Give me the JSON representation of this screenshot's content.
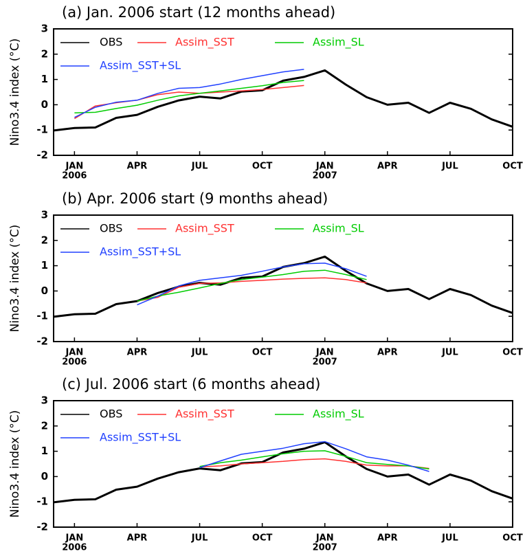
{
  "chart_data": [
    {
      "type": "line",
      "title": "(a) Jan. 2006 start (12 months ahead)",
      "ylabel": "Nino3.4 index (°C)",
      "categories": [
        null,
        "JAN",
        null,
        null,
        "APR",
        null,
        null,
        "JUL",
        null,
        null,
        "OCT",
        null,
        null,
        "JAN",
        null,
        null,
        "APR",
        null,
        null,
        "JUL",
        null,
        null,
        "OCT"
      ],
      "year_labels": [
        null,
        "2006",
        null,
        null,
        null,
        null,
        null,
        null,
        null,
        null,
        null,
        null,
        null,
        "2007",
        null,
        null,
        null,
        null,
        null,
        null,
        null,
        null,
        null
      ],
      "ylim": [
        -2,
        3
      ],
      "yticks": [
        -2,
        -1,
        0,
        1,
        2,
        3
      ],
      "series": [
        {
          "name": "OBS",
          "color": "#000000",
          "values": [
            -1.02,
            -0.92,
            -0.9,
            -0.52,
            -0.4,
            -0.08,
            0.17,
            0.32,
            0.25,
            0.52,
            0.57,
            0.95,
            1.1,
            1.36,
            0.8,
            0.3,
            0.0,
            0.08,
            -0.32,
            0.08,
            -0.16,
            -0.58,
            -0.87
          ]
        },
        {
          "name": "Assim_SST",
          "color": "#ff3030",
          "values": [
            null,
            -0.55,
            -0.05,
            0.08,
            0.18,
            0.4,
            0.5,
            0.45,
            0.5,
            0.55,
            0.6,
            0.68,
            0.76,
            null,
            null,
            null,
            null,
            null,
            null,
            null,
            null,
            null,
            null
          ]
        },
        {
          "name": "Assim_SL",
          "color": "#00cc00",
          "values": [
            null,
            -0.32,
            -0.3,
            -0.15,
            -0.02,
            0.18,
            0.35,
            0.45,
            0.55,
            0.65,
            0.75,
            0.88,
            0.96,
            null,
            null,
            null,
            null,
            null,
            null,
            null,
            null,
            null,
            null
          ]
        },
        {
          "name": "Assim_SST+SL",
          "color": "#2040ff",
          "values": [
            null,
            -0.5,
            -0.1,
            0.1,
            0.18,
            0.45,
            0.65,
            0.68,
            0.82,
            1.0,
            1.15,
            1.3,
            1.4,
            null,
            null,
            null,
            null,
            null,
            null,
            null,
            null,
            null,
            null
          ]
        }
      ]
    },
    {
      "type": "line",
      "title": "(b) Apr. 2006 start (9 months ahead)",
      "ylabel": "Nino3.4 index (°C)",
      "categories": [
        null,
        "JAN",
        null,
        null,
        "APR",
        null,
        null,
        "JUL",
        null,
        null,
        "OCT",
        null,
        null,
        "JAN",
        null,
        null,
        "APR",
        null,
        null,
        "JUL",
        null,
        null,
        "OCT"
      ],
      "year_labels": [
        null,
        "2006",
        null,
        null,
        null,
        null,
        null,
        null,
        null,
        null,
        null,
        null,
        null,
        "2007",
        null,
        null,
        null,
        null,
        null,
        null,
        null,
        null,
        null
      ],
      "ylim": [
        -2,
        3
      ],
      "yticks": [
        -2,
        -1,
        0,
        1,
        2,
        3
      ],
      "series": [
        {
          "name": "OBS",
          "color": "#000000",
          "values": [
            -1.02,
            -0.92,
            -0.9,
            -0.52,
            -0.4,
            -0.08,
            0.17,
            0.32,
            0.25,
            0.52,
            0.57,
            0.95,
            1.1,
            1.36,
            0.8,
            0.3,
            0.0,
            0.08,
            -0.32,
            0.08,
            -0.16,
            -0.58,
            -0.87
          ]
        },
        {
          "name": "Assim_SST",
          "color": "#ff3030",
          "values": [
            null,
            null,
            null,
            null,
            -0.4,
            -0.25,
            0.15,
            0.3,
            0.32,
            0.38,
            0.42,
            0.47,
            0.5,
            0.52,
            0.45,
            0.32,
            null,
            null,
            null,
            null,
            null,
            null,
            null
          ]
        },
        {
          "name": "Assim_SL",
          "color": "#00cc00",
          "values": [
            null,
            null,
            null,
            null,
            -0.4,
            -0.2,
            -0.05,
            0.12,
            0.3,
            0.45,
            0.55,
            0.65,
            0.78,
            0.82,
            0.65,
            0.45,
            null,
            null,
            null,
            null,
            null,
            null,
            null
          ]
        },
        {
          "name": "Assim_SST+SL",
          "color": "#2040ff",
          "values": [
            null,
            null,
            null,
            null,
            -0.55,
            -0.2,
            0.2,
            0.42,
            0.52,
            0.62,
            0.78,
            0.95,
            1.08,
            1.1,
            0.88,
            0.58,
            null,
            null,
            null,
            null,
            null,
            null,
            null
          ]
        }
      ]
    },
    {
      "type": "line",
      "title": "(c) Jul. 2006 start (6 months ahead)",
      "ylabel": "Nino3.4 index (°C)",
      "categories": [
        null,
        "JAN",
        null,
        null,
        "APR",
        null,
        null,
        "JUL",
        null,
        null,
        "OCT",
        null,
        null,
        "JAN",
        null,
        null,
        "APR",
        null,
        null,
        "JUL",
        null,
        null,
        "OCT"
      ],
      "year_labels": [
        null,
        "2006",
        null,
        null,
        null,
        null,
        null,
        null,
        null,
        null,
        null,
        null,
        null,
        "2007",
        null,
        null,
        null,
        null,
        null,
        null,
        null,
        null,
        null
      ],
      "ylim": [
        -2,
        3
      ],
      "yticks": [
        -2,
        -1,
        0,
        1,
        2,
        3
      ],
      "series": [
        {
          "name": "OBS",
          "color": "#000000",
          "values": [
            -1.02,
            -0.92,
            -0.9,
            -0.52,
            -0.4,
            -0.08,
            0.17,
            0.32,
            0.25,
            0.52,
            0.57,
            0.95,
            1.1,
            1.36,
            0.8,
            0.3,
            0.0,
            0.08,
            -0.32,
            0.08,
            -0.16,
            -0.58,
            -0.87
          ]
        },
        {
          "name": "Assim_SST",
          "color": "#ff3030",
          "values": [
            null,
            null,
            null,
            null,
            null,
            null,
            null,
            0.38,
            0.42,
            0.5,
            0.55,
            0.6,
            0.67,
            0.7,
            0.6,
            0.45,
            0.42,
            0.42,
            0.32,
            null,
            null,
            null,
            null
          ]
        },
        {
          "name": "Assim_SL",
          "color": "#00cc00",
          "values": [
            null,
            null,
            null,
            null,
            null,
            null,
            null,
            0.4,
            0.55,
            0.65,
            0.78,
            0.9,
            1.0,
            1.02,
            0.8,
            0.55,
            0.48,
            0.42,
            0.3,
            null,
            null,
            null,
            null
          ]
        },
        {
          "name": "Assim_SST+SL",
          "color": "#2040ff",
          "values": [
            null,
            null,
            null,
            null,
            null,
            null,
            null,
            0.35,
            0.62,
            0.88,
            1.0,
            1.12,
            1.3,
            1.38,
            1.1,
            0.78,
            0.65,
            0.45,
            0.2,
            null,
            null,
            null,
            null
          ]
        }
      ]
    }
  ]
}
